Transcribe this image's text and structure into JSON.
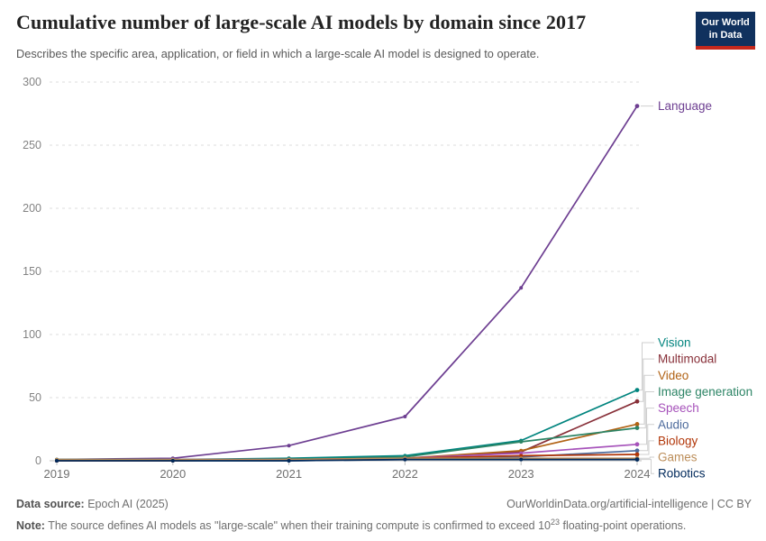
{
  "header": {
    "title": "Cumulative number of large-scale AI models by domain since 2017",
    "subtitle": "Describes the specific area, application, or field in which a large-scale AI model is designed to operate.",
    "logo": {
      "line1": "Our World",
      "line2": "in Data",
      "bg_color": "#10315e",
      "stripe_color": "#c5281c"
    }
  },
  "chart_data": {
    "type": "line",
    "title": "Cumulative number of large-scale AI models by domain since 2017",
    "x": [
      2019,
      2020,
      2021,
      2022,
      2023,
      2024
    ],
    "xlabel": "",
    "ylabel": "",
    "ylim": [
      0,
      300
    ],
    "yticks": [
      0,
      50,
      100,
      150,
      200,
      250,
      300
    ],
    "grid": "horizontal-dashed",
    "legend_position": "right-end-of-line",
    "marker": "point-per-year",
    "series": [
      {
        "name": "Language",
        "color": "#6D3E91",
        "values": [
          1,
          2,
          12,
          35,
          137,
          281
        ]
      },
      {
        "name": "Vision",
        "color": "#00847E",
        "values": [
          1,
          1,
          2,
          4,
          16,
          56
        ]
      },
      {
        "name": "Multimodal",
        "color": "#883039",
        "values": [
          0,
          0,
          1,
          2,
          7,
          47
        ]
      },
      {
        "name": "Video",
        "color": "#B16214",
        "values": [
          0,
          0,
          1,
          2,
          8,
          29
        ]
      },
      {
        "name": "Image generation",
        "color": "#2C8465",
        "values": [
          0,
          0,
          1,
          3,
          15,
          26
        ]
      },
      {
        "name": "Speech",
        "color": "#A652BA",
        "values": [
          0,
          1,
          1,
          2,
          6,
          13
        ]
      },
      {
        "name": "Audio",
        "color": "#4C6A9C",
        "values": [
          0,
          0,
          0,
          1,
          3,
          8
        ]
      },
      {
        "name": "Biology",
        "color": "#B13507",
        "values": [
          0,
          0,
          1,
          2,
          4,
          5
        ]
      },
      {
        "name": "Games",
        "color": "#BC8E5A",
        "values": [
          1,
          1,
          1,
          2,
          2,
          2
        ]
      },
      {
        "name": "Robotics",
        "color": "#00295B",
        "values": [
          0,
          0,
          0,
          1,
          1,
          1
        ]
      }
    ]
  },
  "footer": {
    "source_label": "Data source:",
    "source_value": " Epoch AI (2025)",
    "credit": "OurWorldinData.org/artificial-intelligence | CC BY",
    "note_label": "Note:",
    "note_pre": " The source defines AI models as \"large-scale\" when their training compute is confirmed to exceed 10",
    "note_exp": "23",
    "note_post": " floating-point operations."
  }
}
